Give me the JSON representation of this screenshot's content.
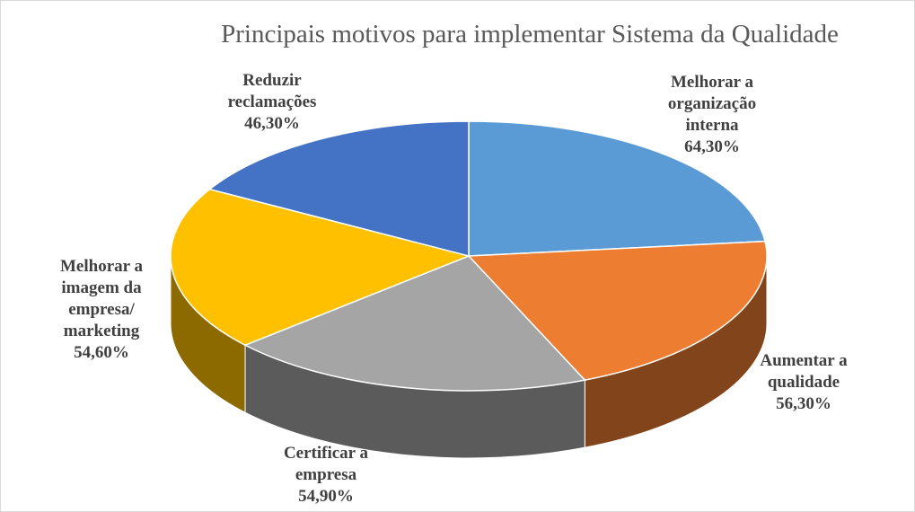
{
  "chart_data": {
    "type": "pie",
    "title": "Principais motivos para implementar Sistema da Qualidade",
    "categories": [
      "Melhorar a organização interna",
      "Aumentar a qualidade",
      "Certificar a empresa",
      "Melhorar a imagem da empresa/ marketing",
      "Reduzir reclamações"
    ],
    "values": [
      64.3,
      56.3,
      54.9,
      54.6,
      46.3
    ],
    "value_labels": [
      "64,30%",
      "56,30%",
      "54,90%",
      "54,60%",
      "46,30%"
    ],
    "colors": [
      "#5b9bd5",
      "#ed7d31",
      "#a5a5a5",
      "#ffc000",
      "#4472c4"
    ]
  }
}
